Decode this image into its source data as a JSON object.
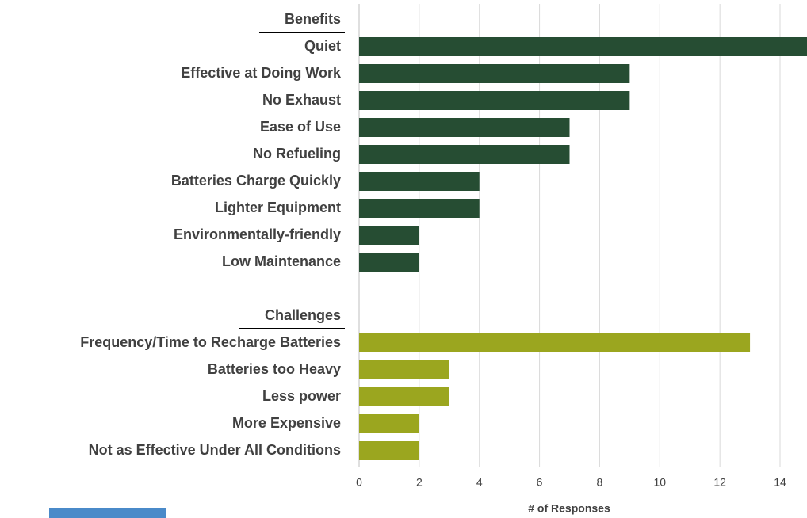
{
  "chart_data": {
    "type": "bar",
    "orientation": "horizontal",
    "groups": [
      {
        "name": "Benefits",
        "color": "#264d33",
        "categories": [
          "Quiet",
          "Effective at Doing Work",
          "No Exhaust",
          "Ease of Use",
          "No Refueling",
          "Batteries Charge Quickly",
          "Lighter Equipment",
          "Environmentally-friendly",
          "Low Maintenance"
        ],
        "values": [
          15,
          9,
          9,
          7,
          7,
          4,
          4,
          2,
          2
        ]
      },
      {
        "name": "Challenges",
        "color": "#9ba61f",
        "categories": [
          "Frequency/Time to Recharge Batteries",
          "Batteries too Heavy",
          "Less power",
          "More Expensive",
          "Not as Effective Under All Conditions"
        ],
        "values": [
          13,
          3,
          3,
          2,
          2
        ]
      }
    ],
    "xlabel": "# of Responses",
    "xlim": [
      0,
      15
    ],
    "xticks": [
      0,
      2,
      4,
      6,
      8,
      10,
      12,
      14
    ],
    "grid": true
  }
}
